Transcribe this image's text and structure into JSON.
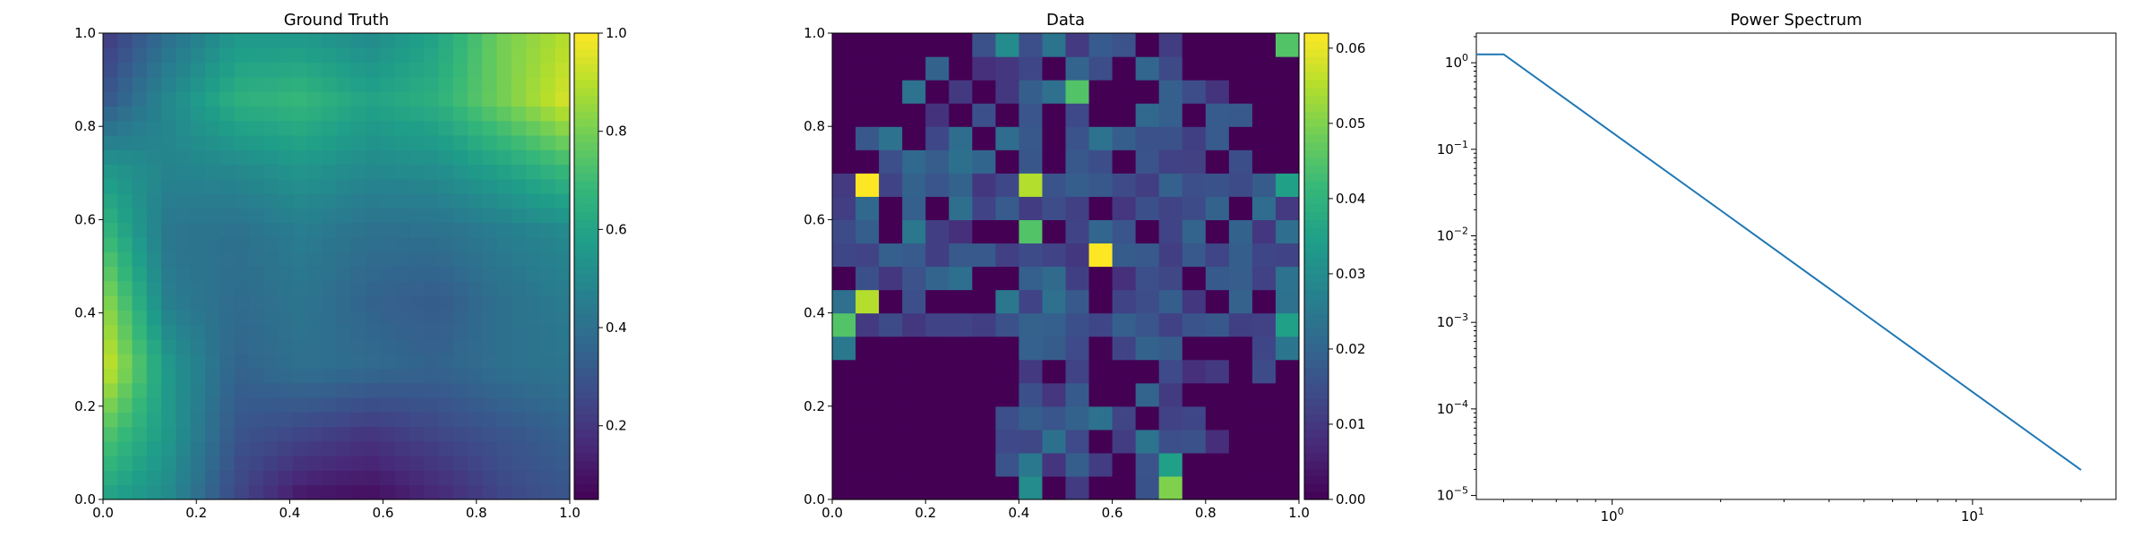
{
  "chart_data": [
    {
      "type": "heatmap",
      "title": "Ground Truth",
      "xlim": [
        0,
        1
      ],
      "ylim": [
        0,
        1
      ],
      "xticks": [
        "0.0",
        "0.2",
        "0.4",
        "0.6",
        "0.8",
        "1.0"
      ],
      "yticks": [
        "0.0",
        "0.2",
        "0.4",
        "0.6",
        "0.8",
        "1.0"
      ],
      "colormap": "viridis",
      "colorbar": {
        "range": [
          0.05,
          1.0
        ],
        "ticks": [
          "0.2",
          "0.4",
          "0.6",
          "0.8",
          "1.0"
        ]
      },
      "grid": {
        "rows": 8,
        "cols": 8,
        "origin": "lower",
        "values": [
          [
            0.6,
            0.5,
            0.25,
            0.1,
            0.08,
            0.15,
            0.25,
            0.3
          ],
          [
            0.75,
            0.55,
            0.3,
            0.25,
            0.2,
            0.25,
            0.3,
            0.35
          ],
          [
            0.95,
            0.55,
            0.35,
            0.4,
            0.38,
            0.35,
            0.4,
            0.42
          ],
          [
            0.85,
            0.45,
            0.38,
            0.42,
            0.35,
            0.32,
            0.4,
            0.45
          ],
          [
            0.7,
            0.42,
            0.4,
            0.45,
            0.4,
            0.4,
            0.45,
            0.5
          ],
          [
            0.55,
            0.48,
            0.5,
            0.55,
            0.5,
            0.52,
            0.6,
            0.7
          ],
          [
            0.3,
            0.5,
            0.65,
            0.68,
            0.6,
            0.65,
            0.8,
            0.95
          ],
          [
            0.2,
            0.4,
            0.55,
            0.55,
            0.5,
            0.6,
            0.8,
            0.9
          ]
        ]
      }
    },
    {
      "type": "heatmap",
      "title": "Data",
      "xlim": [
        0,
        1
      ],
      "ylim": [
        0,
        1
      ],
      "xticks": [
        "0.0",
        "0.2",
        "0.4",
        "0.6",
        "0.8",
        "1.0"
      ],
      "yticks": [
        "0.0",
        "0.2",
        "0.4",
        "0.6",
        "0.8",
        "1.0"
      ],
      "colormap": "viridis",
      "colorbar": {
        "range": [
          0,
          0.062
        ],
        "ticks": [
          "0.00",
          "0.01",
          "0.02",
          "0.03",
          "0.04",
          "0.05",
          "0.06"
        ]
      },
      "grid": {
        "rows": 20,
        "cols": 20,
        "origin": "lower",
        "hot_cells": [
          {
            "col": 0,
            "row": 7,
            "value": 0.045
          },
          {
            "col": 1,
            "row": 8,
            "value": 0.055
          },
          {
            "col": 1,
            "row": 13,
            "value": 0.062
          },
          {
            "col": 8,
            "row": 13,
            "value": 0.055
          },
          {
            "col": 11,
            "row": 10,
            "value": 0.062
          },
          {
            "col": 8,
            "row": 11,
            "value": 0.045
          },
          {
            "col": 10,
            "row": 17,
            "value": 0.045
          },
          {
            "col": 19,
            "row": 19,
            "value": 0.045
          },
          {
            "col": 19,
            "row": 13,
            "value": 0.035
          },
          {
            "col": 19,
            "row": 7,
            "value": 0.035
          },
          {
            "col": 14,
            "row": 0,
            "value": 0.05
          },
          {
            "col": 14,
            "row": 1,
            "value": 0.035
          },
          {
            "col": 8,
            "row": 0,
            "value": 0.03
          },
          {
            "col": 8,
            "row": 1,
            "value": 0.025
          },
          {
            "col": 7,
            "row": 19,
            "value": 0.03
          }
        ]
      }
    },
    {
      "type": "line",
      "title": "Power Spectrum",
      "xscale": "log",
      "yscale": "log",
      "xlim": [
        0.42,
        25
      ],
      "ylim": [
        9e-06,
        2.2
      ],
      "xticks": [
        {
          "value": 1,
          "base": "10",
          "exp": "0"
        },
        {
          "value": 10,
          "base": "10",
          "exp": "1"
        }
      ],
      "yticks": [
        {
          "value": 1,
          "base": "10",
          "exp": "0"
        },
        {
          "value": 0.1,
          "base": "10",
          "exp": "−1"
        },
        {
          "value": 0.01,
          "base": "10",
          "exp": "−2"
        },
        {
          "value": 0.001,
          "base": "10",
          "exp": "−3"
        },
        {
          "value": 0.0001,
          "base": "10",
          "exp": "−4"
        },
        {
          "value": 1e-05,
          "base": "10",
          "exp": "−5"
        }
      ],
      "series": [
        {
          "color": "#1f77b4",
          "x": [
            0.42,
            0.5,
            1.0,
            2.0,
            5.0,
            10.0,
            20.0
          ],
          "y": [
            1.25,
            1.25,
            0.157,
            0.0197,
            0.00126,
            0.000157,
            1.97e-05
          ]
        }
      ]
    }
  ]
}
